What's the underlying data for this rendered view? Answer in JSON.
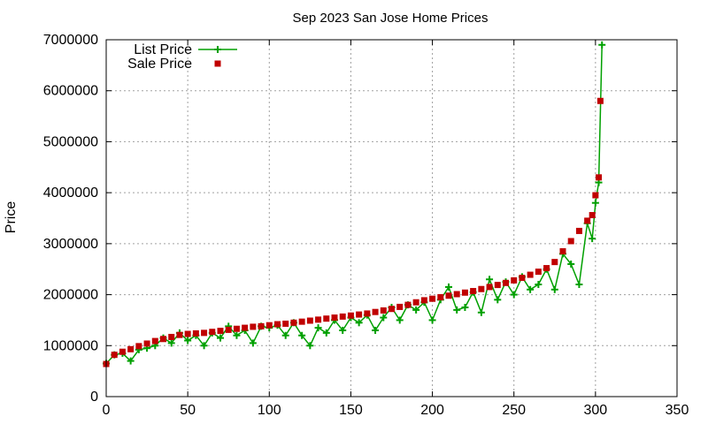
{
  "chart_data": {
    "type": "line",
    "title": "Sep 2023 San Jose Home Prices",
    "xlabel": "",
    "ylabel": "Price",
    "xlim": [
      0,
      350
    ],
    "ylim": [
      0,
      7000000
    ],
    "x_ticks": [
      "0",
      "50",
      "100",
      "150",
      "200",
      "250",
      "300",
      "350"
    ],
    "y_ticks": [
      "0",
      "1000000",
      "2000000",
      "3000000",
      "4000000",
      "5000000",
      "6000000",
      "7000000"
    ],
    "grid": true,
    "legend_position": "top-left",
    "colors": {
      "list": "#00a000",
      "sale": "#c00000"
    },
    "series": [
      {
        "name": "List Price",
        "style": "line-plus",
        "points": [
          [
            0,
            650000
          ],
          [
            5,
            820000
          ],
          [
            10,
            850000
          ],
          [
            15,
            700000
          ],
          [
            20,
            920000
          ],
          [
            25,
            950000
          ],
          [
            30,
            1000000
          ],
          [
            35,
            1150000
          ],
          [
            40,
            1050000
          ],
          [
            45,
            1250000
          ],
          [
            50,
            1100000
          ],
          [
            55,
            1200000
          ],
          [
            60,
            1000000
          ],
          [
            65,
            1250000
          ],
          [
            70,
            1150000
          ],
          [
            75,
            1380000
          ],
          [
            80,
            1200000
          ],
          [
            85,
            1300000
          ],
          [
            90,
            1050000
          ],
          [
            95,
            1380000
          ],
          [
            100,
            1350000
          ],
          [
            105,
            1400000
          ],
          [
            110,
            1200000
          ],
          [
            115,
            1450000
          ],
          [
            120,
            1200000
          ],
          [
            125,
            1000000
          ],
          [
            130,
            1350000
          ],
          [
            135,
            1250000
          ],
          [
            140,
            1500000
          ],
          [
            145,
            1300000
          ],
          [
            150,
            1550000
          ],
          [
            155,
            1450000
          ],
          [
            160,
            1600000
          ],
          [
            165,
            1300000
          ],
          [
            170,
            1550000
          ],
          [
            175,
            1750000
          ],
          [
            180,
            1500000
          ],
          [
            185,
            1800000
          ],
          [
            190,
            1700000
          ],
          [
            195,
            1850000
          ],
          [
            200,
            1500000
          ],
          [
            205,
            1900000
          ],
          [
            210,
            2150000
          ],
          [
            215,
            1700000
          ],
          [
            220,
            1750000
          ],
          [
            225,
            2050000
          ],
          [
            230,
            1650000
          ],
          [
            235,
            2300000
          ],
          [
            240,
            1900000
          ],
          [
            245,
            2250000
          ],
          [
            250,
            2000000
          ],
          [
            255,
            2350000
          ],
          [
            260,
            2100000
          ],
          [
            265,
            2200000
          ],
          [
            270,
            2500000
          ],
          [
            275,
            2100000
          ],
          [
            280,
            2800000
          ],
          [
            285,
            2600000
          ],
          [
            290,
            2200000
          ],
          [
            295,
            3400000
          ],
          [
            298,
            3100000
          ],
          [
            300,
            3800000
          ],
          [
            302,
            4200000
          ],
          [
            304,
            6900000
          ]
        ]
      },
      {
        "name": "Sale Price",
        "style": "squares",
        "points": [
          [
            0,
            640000
          ],
          [
            5,
            820000
          ],
          [
            10,
            880000
          ],
          [
            15,
            930000
          ],
          [
            20,
            990000
          ],
          [
            25,
            1040000
          ],
          [
            30,
            1090000
          ],
          [
            35,
            1130000
          ],
          [
            40,
            1170000
          ],
          [
            45,
            1210000
          ],
          [
            50,
            1230000
          ],
          [
            55,
            1240000
          ],
          [
            60,
            1250000
          ],
          [
            65,
            1270000
          ],
          [
            70,
            1290000
          ],
          [
            75,
            1310000
          ],
          [
            80,
            1330000
          ],
          [
            85,
            1350000
          ],
          [
            90,
            1370000
          ],
          [
            95,
            1380000
          ],
          [
            100,
            1400000
          ],
          [
            105,
            1420000
          ],
          [
            110,
            1430000
          ],
          [
            115,
            1450000
          ],
          [
            120,
            1470000
          ],
          [
            125,
            1490000
          ],
          [
            130,
            1510000
          ],
          [
            135,
            1530000
          ],
          [
            140,
            1550000
          ],
          [
            145,
            1570000
          ],
          [
            150,
            1590000
          ],
          [
            155,
            1610000
          ],
          [
            160,
            1630000
          ],
          [
            165,
            1660000
          ],
          [
            170,
            1690000
          ],
          [
            175,
            1720000
          ],
          [
            180,
            1760000
          ],
          [
            185,
            1800000
          ],
          [
            190,
            1850000
          ],
          [
            195,
            1890000
          ],
          [
            200,
            1920000
          ],
          [
            205,
            1950000
          ],
          [
            210,
            1980000
          ],
          [
            215,
            2010000
          ],
          [
            220,
            2040000
          ],
          [
            225,
            2070000
          ],
          [
            230,
            2110000
          ],
          [
            235,
            2150000
          ],
          [
            240,
            2190000
          ],
          [
            245,
            2230000
          ],
          [
            250,
            2280000
          ],
          [
            255,
            2330000
          ],
          [
            260,
            2390000
          ],
          [
            265,
            2450000
          ],
          [
            270,
            2520000
          ],
          [
            275,
            2640000
          ],
          [
            280,
            2850000
          ],
          [
            285,
            3050000
          ],
          [
            290,
            3250000
          ],
          [
            295,
            3450000
          ],
          [
            298,
            3560000
          ],
          [
            300,
            3950000
          ],
          [
            302,
            4300000
          ],
          [
            303,
            5800000
          ]
        ]
      }
    ]
  }
}
